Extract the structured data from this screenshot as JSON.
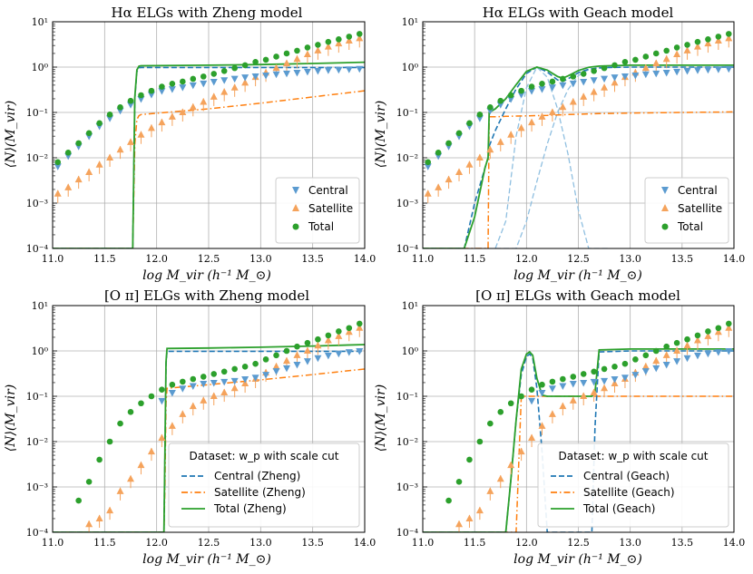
{
  "colors": {
    "central": "#1f77b4",
    "satellite": "#ff7f0e",
    "total": "#2ca02c",
    "central_pts": "#5b9bd0",
    "satellite_pts": "#f5a35c",
    "grid": "#b0b0b0"
  },
  "chart_data": [
    {
      "type": "scatter",
      "title": "Hα ELGs with Zheng model",
      "xlabel": "log M_vir (h⁻¹ M_⊙)",
      "ylabel": "⟨N⟩(M_vir)",
      "xlim": [
        11.0,
        14.0
      ],
      "ylim": [
        0.0001,
        10
      ],
      "yscale": "log",
      "xticks": [
        "11.0",
        "11.5",
        "12.0",
        "12.5",
        "13.0",
        "13.5",
        "14.0"
      ],
      "yticks": [
        "10⁻⁴",
        "10⁻³",
        "10⁻²",
        "10⁻¹",
        "10⁰",
        "10¹"
      ],
      "legend": {
        "placement": "lower-right",
        "header": "",
        "entries": [
          "Central",
          "Satellite",
          "Total"
        ]
      },
      "points": {
        "x": [
          11.05,
          11.15,
          11.25,
          11.35,
          11.45,
          11.55,
          11.65,
          11.75,
          11.85,
          11.95,
          12.05,
          12.15,
          12.25,
          12.35,
          12.45,
          12.55,
          12.65,
          12.75,
          12.85,
          12.95,
          13.05,
          13.15,
          13.25,
          13.35,
          13.45,
          13.55,
          13.65,
          13.75,
          13.85,
          13.95
        ],
        "central": [
          0.0065,
          0.011,
          0.018,
          0.03,
          0.05,
          0.075,
          0.11,
          0.15,
          0.2,
          0.25,
          0.3,
          0.33,
          0.36,
          0.4,
          0.44,
          0.48,
          0.52,
          0.56,
          0.6,
          0.63,
          0.66,
          0.7,
          0.73,
          0.76,
          0.8,
          0.83,
          0.86,
          0.88,
          0.9,
          0.92
        ],
        "satellite": [
          0.0016,
          0.0022,
          0.0033,
          0.0048,
          0.007,
          0.01,
          0.015,
          0.022,
          0.032,
          0.045,
          0.06,
          0.08,
          0.1,
          0.13,
          0.17,
          0.22,
          0.28,
          0.35,
          0.45,
          0.6,
          0.75,
          0.95,
          1.2,
          1.5,
          1.9,
          2.3,
          2.8,
          3.3,
          3.8,
          4.3
        ],
        "total": [
          0.008,
          0.013,
          0.021,
          0.035,
          0.058,
          0.09,
          0.13,
          0.18,
          0.24,
          0.3,
          0.37,
          0.43,
          0.48,
          0.55,
          0.62,
          0.71,
          0.82,
          0.95,
          1.1,
          1.3,
          1.45,
          1.7,
          2.0,
          2.3,
          2.7,
          3.1,
          3.6,
          4.1,
          4.7,
          5.4
        ]
      },
      "model": {
        "x": [
          11.0,
          11.77,
          11.79,
          11.81,
          11.83,
          11.85,
          12.5,
          13.0,
          13.5,
          14.0
        ],
        "central": [
          0.0001,
          0.0001,
          0.2,
          0.8,
          0.97,
          0.98,
          0.98,
          0.98,
          0.98,
          0.98
        ],
        "satellite": [
          0.0001,
          0.0001,
          0.02,
          0.07,
          0.085,
          0.09,
          0.12,
          0.16,
          0.22,
          0.3
        ],
        "total": [
          0.0001,
          0.0001,
          0.22,
          0.87,
          1.05,
          1.07,
          1.1,
          1.14,
          1.2,
          1.28
        ]
      }
    },
    {
      "type": "scatter",
      "title": "Hα ELGs with Geach model",
      "xlabel": "log M_vir (h⁻¹ M_⊙)",
      "ylabel": "⟨N⟩(M_vir)",
      "xlim": [
        11.0,
        14.0
      ],
      "ylim": [
        0.0001,
        10
      ],
      "yscale": "log",
      "xticks": [
        "11.0",
        "11.5",
        "12.0",
        "12.5",
        "13.0",
        "13.5",
        "14.0"
      ],
      "yticks": [
        "10⁻⁴",
        "10⁻³",
        "10⁻²",
        "10⁻¹",
        "10⁰",
        "10¹"
      ],
      "legend": {
        "placement": "lower-right",
        "header": "",
        "entries": [
          "Central",
          "Satellite",
          "Total"
        ]
      },
      "points": {
        "x": [
          11.05,
          11.15,
          11.25,
          11.35,
          11.45,
          11.55,
          11.65,
          11.75,
          11.85,
          11.95,
          12.05,
          12.15,
          12.25,
          12.35,
          12.45,
          12.55,
          12.65,
          12.75,
          12.85,
          12.95,
          13.05,
          13.15,
          13.25,
          13.35,
          13.45,
          13.55,
          13.65,
          13.75,
          13.85,
          13.95
        ],
        "central": [
          0.0065,
          0.011,
          0.018,
          0.03,
          0.05,
          0.075,
          0.11,
          0.15,
          0.2,
          0.25,
          0.3,
          0.33,
          0.36,
          0.4,
          0.44,
          0.48,
          0.52,
          0.56,
          0.6,
          0.63,
          0.66,
          0.7,
          0.73,
          0.76,
          0.8,
          0.83,
          0.86,
          0.88,
          0.9,
          0.92
        ],
        "satellite": [
          0.0016,
          0.0022,
          0.0033,
          0.0048,
          0.007,
          0.01,
          0.015,
          0.022,
          0.032,
          0.045,
          0.06,
          0.08,
          0.1,
          0.13,
          0.17,
          0.22,
          0.28,
          0.35,
          0.45,
          0.6,
          0.75,
          0.95,
          1.2,
          1.5,
          1.9,
          2.3,
          2.8,
          3.3,
          3.8,
          4.3
        ],
        "total": [
          0.008,
          0.013,
          0.021,
          0.035,
          0.058,
          0.09,
          0.13,
          0.18,
          0.24,
          0.3,
          0.37,
          0.43,
          0.48,
          0.55,
          0.62,
          0.71,
          0.82,
          0.95,
          1.1,
          1.3,
          1.45,
          1.7,
          2.0,
          2.3,
          2.7,
          3.1,
          3.6,
          4.1,
          4.7,
          5.4
        ]
      },
      "model": {
        "x": [
          11.0,
          11.3,
          11.4,
          11.5,
          11.6,
          11.63,
          11.64,
          11.7,
          11.8,
          11.9,
          12.0,
          12.1,
          12.2,
          12.3,
          12.35,
          12.4,
          12.5,
          12.6,
          12.7,
          12.8,
          13.0,
          13.5,
          14.0
        ],
        "central": [
          0.0001,
          0.0001,
          0.0001,
          0.001,
          0.006,
          0.01,
          0.018,
          0.04,
          0.12,
          0.33,
          0.72,
          1.0,
          0.78,
          0.52,
          0.48,
          0.55,
          0.75,
          0.9,
          0.96,
          0.98,
          1.0,
          1.0,
          1.0
        ],
        "satellite": [
          0.0001,
          0.0001,
          0.0001,
          0.0001,
          0.0001,
          0.0001,
          0.08,
          0.08,
          0.082,
          0.083,
          0.084,
          0.085,
          0.086,
          0.088,
          0.089,
          0.09,
          0.091,
          0.093,
          0.094,
          0.095,
          0.097,
          0.1,
          0.103
        ],
        "total": [
          0.0001,
          0.0001,
          0.0001,
          0.0005,
          0.006,
          0.01,
          0.1,
          0.12,
          0.2,
          0.41,
          0.8,
          1.0,
          0.86,
          0.62,
          0.57,
          0.64,
          0.84,
          0.99,
          1.05,
          1.07,
          1.1,
          1.1,
          1.1
        ]
      },
      "components": {
        "x": [
          11.7,
          11.8,
          11.9,
          12.0,
          12.1,
          12.2,
          12.3,
          12.4,
          12.5,
          12.6,
          12.7,
          12.8
        ],
        "gaussian": [
          0.0001,
          0.0004,
          0.03,
          0.35,
          1.0,
          0.6,
          0.12,
          0.012,
          0.0007,
          0.0001,
          0.0001,
          0.0001
        ],
        "step": [
          0.0001,
          0.0001,
          0.0001,
          0.0004,
          0.003,
          0.02,
          0.1,
          0.32,
          0.65,
          0.88,
          0.97,
          1.0
        ]
      }
    },
    {
      "type": "scatter",
      "title": "[O ɪɪ] ELGs with Zheng model",
      "xlabel": "log M_vir (h⁻¹ M_⊙)",
      "ylabel": "⟨N⟩(M_vir)",
      "xlim": [
        11.0,
        14.0
      ],
      "ylim": [
        0.0001,
        10
      ],
      "yscale": "log",
      "xticks": [
        "11.0",
        "11.5",
        "12.0",
        "12.5",
        "13.0",
        "13.5",
        "14.0"
      ],
      "yticks": [
        "10⁻⁴",
        "10⁻³",
        "10⁻²",
        "10⁻¹",
        "10⁰",
        "10¹"
      ],
      "legend": {
        "placement": "lower-right",
        "header": "Dataset: w_p with scale cut",
        "entries": [
          "Central (Zheng)",
          "Satellite (Zheng)",
          "Total (Zheng)"
        ]
      },
      "points": {
        "x": [
          11.15,
          11.25,
          11.35,
          11.45,
          11.55,
          11.65,
          11.75,
          11.85,
          11.95,
          12.05,
          12.15,
          12.25,
          12.35,
          12.45,
          12.55,
          12.65,
          12.75,
          12.85,
          12.95,
          13.05,
          13.15,
          13.25,
          13.35,
          13.45,
          13.55,
          13.65,
          13.75,
          13.85,
          13.95
        ],
        "central": [
          null,
          null,
          null,
          null,
          null,
          null,
          null,
          null,
          null,
          0.08,
          0.12,
          0.15,
          0.17,
          0.19,
          0.2,
          0.21,
          0.22,
          0.24,
          0.26,
          0.3,
          0.36,
          0.42,
          0.5,
          0.6,
          0.7,
          0.8,
          0.88,
          0.95,
          1.0
        ],
        "satellite": [
          null,
          0.0001,
          0.00015,
          0.0002,
          0.0003,
          0.0008,
          0.0015,
          0.003,
          0.006,
          0.012,
          0.022,
          0.04,
          0.06,
          0.08,
          0.1,
          0.12,
          0.15,
          0.19,
          0.24,
          0.33,
          0.45,
          0.6,
          0.8,
          1.0,
          1.3,
          1.7,
          2.1,
          2.6,
          3.2
        ],
        "total": [
          0.0001,
          0.0005,
          0.0013,
          0.004,
          0.01,
          0.025,
          0.045,
          0.07,
          0.1,
          0.14,
          0.18,
          0.21,
          0.24,
          0.27,
          0.31,
          0.35,
          0.4,
          0.45,
          0.52,
          0.65,
          0.8,
          1.0,
          1.25,
          1.5,
          1.8,
          2.2,
          2.7,
          3.2,
          4.0
        ]
      },
      "model": {
        "x": [
          11.0,
          12.07,
          12.08,
          12.09,
          12.1,
          12.5,
          13.0,
          13.5,
          14.0
        ],
        "central": [
          0.0001,
          0.0001,
          0.005,
          0.5,
          0.98,
          0.98,
          0.98,
          0.98,
          0.98
        ],
        "satellite": [
          0.0001,
          0.0001,
          0.001,
          0.07,
          0.15,
          0.18,
          0.23,
          0.3,
          0.4
        ],
        "total": [
          0.0001,
          0.0001,
          0.006,
          0.57,
          1.13,
          1.16,
          1.21,
          1.28,
          1.38
        ]
      }
    },
    {
      "type": "scatter",
      "title": "[O ɪɪ] ELGs with Geach model",
      "xlabel": "log M_vir (h⁻¹ M_⊙)",
      "ylabel": "⟨N⟩(M_vir)",
      "xlim": [
        11.0,
        14.0
      ],
      "ylim": [
        0.0001,
        10
      ],
      "yscale": "log",
      "xticks": [
        "11.0",
        "11.5",
        "12.0",
        "12.5",
        "13.0",
        "13.5",
        "14.0"
      ],
      "yticks": [
        "10⁻⁴",
        "10⁻³",
        "10⁻²",
        "10⁻¹",
        "10⁰",
        "10¹"
      ],
      "legend": {
        "placement": "lower-right",
        "header": "Dataset: w_p with scale cut",
        "entries": [
          "Central (Geach)",
          "Satellite (Geach)",
          "Total (Geach)"
        ]
      },
      "points": {
        "x": [
          11.15,
          11.25,
          11.35,
          11.45,
          11.55,
          11.65,
          11.75,
          11.85,
          11.95,
          12.05,
          12.15,
          12.25,
          12.35,
          12.45,
          12.55,
          12.65,
          12.75,
          12.85,
          12.95,
          13.05,
          13.15,
          13.25,
          13.35,
          13.45,
          13.55,
          13.65,
          13.75,
          13.85,
          13.95
        ],
        "central": [
          null,
          null,
          null,
          null,
          null,
          null,
          null,
          null,
          null,
          0.08,
          0.12,
          0.15,
          0.17,
          0.19,
          0.2,
          0.21,
          0.22,
          0.24,
          0.26,
          0.3,
          0.36,
          0.42,
          0.5,
          0.6,
          0.7,
          0.8,
          0.88,
          0.95,
          1.0
        ],
        "satellite": [
          null,
          0.0001,
          0.00015,
          0.0002,
          0.0003,
          0.0008,
          0.0015,
          0.003,
          0.006,
          0.012,
          0.022,
          0.04,
          0.06,
          0.08,
          0.1,
          0.12,
          0.15,
          0.19,
          0.24,
          0.33,
          0.45,
          0.6,
          0.8,
          1.0,
          1.3,
          1.7,
          2.1,
          2.6,
          3.2
        ],
        "total": [
          0.0001,
          0.0005,
          0.0013,
          0.004,
          0.01,
          0.025,
          0.045,
          0.07,
          0.1,
          0.14,
          0.18,
          0.21,
          0.24,
          0.27,
          0.31,
          0.35,
          0.4,
          0.45,
          0.52,
          0.65,
          0.8,
          1.0,
          1.25,
          1.5,
          1.8,
          2.2,
          2.7,
          3.2,
          4.0
        ]
      },
      "model": {
        "x": [
          11.0,
          11.8,
          11.85,
          11.9,
          11.95,
          12.0,
          12.03,
          12.06,
          12.1,
          12.15,
          12.2,
          12.25,
          12.6,
          12.63,
          12.66,
          12.7,
          13.0,
          13.5,
          14.0
        ],
        "central": [
          0.0001,
          0.0001,
          0.0015,
          0.03,
          0.3,
          0.75,
          0.85,
          0.7,
          0.15,
          0.006,
          0.0001,
          0.0001,
          0.0001,
          0.0001,
          0.02,
          0.95,
          1.0,
          1.0,
          1.0
        ],
        "satellite": [
          0.0001,
          0.0001,
          0.0001,
          0.0001,
          0.1,
          0.1,
          0.1,
          0.1,
          0.1,
          0.1,
          0.1,
          0.1,
          0.1,
          0.1,
          0.1,
          0.1,
          0.1,
          0.1,
          0.1
        ],
        "total": [
          0.0001,
          0.0001,
          0.0015,
          0.03,
          0.4,
          0.85,
          0.95,
          0.8,
          0.25,
          0.106,
          0.1,
          0.1,
          0.1,
          0.1,
          0.12,
          1.05,
          1.1,
          1.1,
          1.1
        ]
      }
    }
  ]
}
